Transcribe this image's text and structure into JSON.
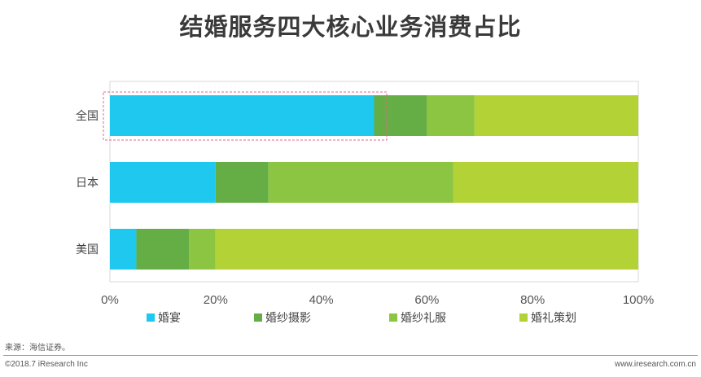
{
  "chart_data": {
    "type": "bar",
    "orientation": "horizontal",
    "stacked": true,
    "title": "结婚服务四大核心业务消费占比",
    "categories": [
      "全国",
      "日本",
      "美国"
    ],
    "x_tick_labels": [
      "0%",
      "20%",
      "40%",
      "60%",
      "80%",
      "100%"
    ],
    "xlim": [
      0,
      100
    ],
    "grid": false,
    "legend_position": "bottom",
    "series": [
      {
        "name": "婚宴",
        "color": "#1ec8ee",
        "values": [
          50,
          20,
          5
        ]
      },
      {
        "name": "婚纱摄影",
        "color": "#65ad45",
        "values": [
          10,
          10,
          10
        ]
      },
      {
        "name": "婚纱礼服",
        "color": "#8cc541",
        "values": [
          9,
          35,
          5
        ]
      },
      {
        "name": "婚礼策划",
        "color": "#b2d236",
        "values": [
          31,
          35,
          80
        ]
      }
    ],
    "highlight_color": "#e06a8a"
  },
  "footer": {
    "source": "来源：海信证券。",
    "copyright": "©2018.7 iResearch Inc",
    "website": "www.iresearch.com.cn"
  }
}
